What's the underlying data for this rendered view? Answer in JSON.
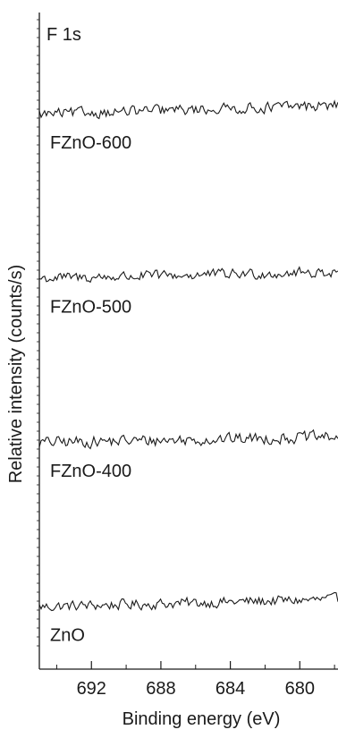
{
  "chart_data": {
    "type": "line",
    "panel_label": "F 1s",
    "xlabel": "Binding energy (eV)",
    "ylabel": "Relative intensity (counts/s)",
    "x_reversed": true,
    "xlim": [
      695.0,
      677.8
    ],
    "xticks": [
      692,
      688,
      684,
      680
    ],
    "xtick_labels": [
      "692",
      "688",
      "684",
      "680"
    ],
    "minor_xtick_step": 2,
    "ylim": [
      0,
      4.0
    ],
    "ytick_labels_shown": false,
    "legend": "none",
    "grid": false,
    "line_color": "#1a1a1a",
    "series": [
      {
        "name": "ZnO",
        "offset": 0.38,
        "trend": 0.045,
        "noise": 0.045
      },
      {
        "name": "FZnO-400",
        "offset": 1.38,
        "trend": 0.035,
        "noise": 0.05
      },
      {
        "name": "FZnO-500",
        "offset": 2.38,
        "trend": 0.04,
        "noise": 0.045
      },
      {
        "name": "FZnO-600",
        "offset": 3.38,
        "trend": 0.055,
        "noise": 0.045
      }
    ]
  }
}
